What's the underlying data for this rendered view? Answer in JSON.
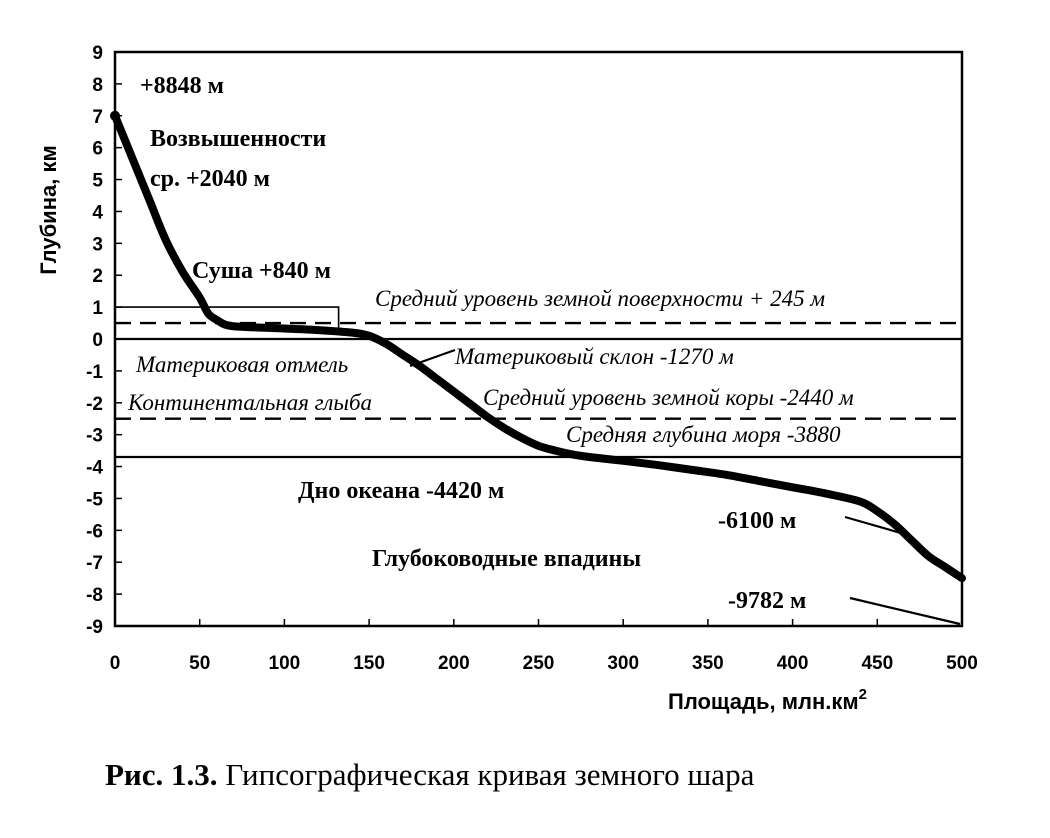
{
  "chart_data": {
    "type": "line",
    "xlabel": "Площадь, млн.км",
    "xlabel_sup": "2",
    "ylabel": "Глубина, км",
    "xlim": [
      0,
      500
    ],
    "ylim": [
      -9,
      9
    ],
    "x_ticks": [
      0,
      50,
      100,
      150,
      200,
      250,
      300,
      350,
      400,
      450,
      500
    ],
    "y_ticks": [
      9,
      8,
      7,
      6,
      5,
      4,
      3,
      2,
      1,
      0,
      -1,
      -2,
      -3,
      -4,
      -5,
      -6,
      -7,
      -8,
      -9
    ],
    "grid": false,
    "series": [
      {
        "x": [
          0,
          10,
          20,
          30,
          40,
          50,
          55,
          60,
          65,
          70,
          80,
          100,
          120,
          140,
          150,
          160,
          170,
          180,
          190,
          200,
          210,
          220,
          230,
          240,
          250,
          260,
          270,
          280,
          300,
          320,
          340,
          360,
          380,
          400,
          420,
          440,
          450,
          460,
          470,
          480,
          490,
          500
        ],
        "y": [
          7.0,
          5.7,
          4.4,
          3.1,
          2.1,
          1.3,
          0.8,
          0.6,
          0.45,
          0.4,
          0.37,
          0.33,
          0.28,
          0.2,
          0.1,
          -0.15,
          -0.5,
          -0.85,
          -1.25,
          -1.65,
          -2.05,
          -2.45,
          -2.8,
          -3.1,
          -3.35,
          -3.5,
          -3.62,
          -3.7,
          -3.82,
          -3.95,
          -4.1,
          -4.25,
          -4.45,
          -4.65,
          -4.85,
          -5.1,
          -5.4,
          -5.8,
          -6.3,
          -6.8,
          -7.15,
          -7.5
        ]
      }
    ],
    "reference_lines": [
      {
        "y": 0.5,
        "style": "dashed",
        "label": "Средний уровень земной поверхности + 245 м"
      },
      {
        "y": 0,
        "style": "solid",
        "label": ""
      },
      {
        "y": -2.5,
        "style": "dashed",
        "label": "Средний уровень земной коры -2440 м"
      },
      {
        "y": -3.7,
        "style": "solid",
        "label": "Средняя глубина моря -3880"
      }
    ],
    "annotations": [
      {
        "text": "+8848 м",
        "style": "bold"
      },
      {
        "text": "Возвышенности",
        "style": "bold"
      },
      {
        "text": "ср. +2040 м",
        "style": "bold"
      },
      {
        "text": "Суша +840 м",
        "style": "bold"
      },
      {
        "text": "Материковая отмель",
        "style": "italic"
      },
      {
        "text": "Материковый склон -1270 м",
        "style": "italic"
      },
      {
        "text": "Континентальная глыба",
        "style": "italic"
      },
      {
        "text": "Дно океана -4420 м",
        "style": "bold"
      },
      {
        "text": "-6100 м",
        "style": "bold"
      },
      {
        "text": "Глубоководные впадины",
        "style": "bold"
      },
      {
        "text": "-9782 м",
        "style": "bold"
      }
    ]
  },
  "caption": {
    "number": "Рис. 1.3.",
    "text": " Гипсографическая кривая земного шара"
  }
}
